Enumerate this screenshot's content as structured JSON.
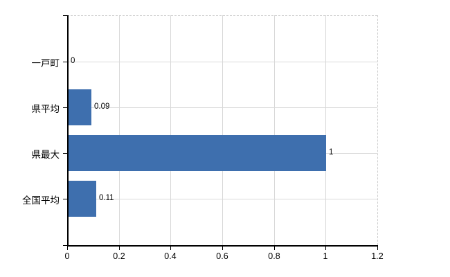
{
  "chart_data": {
    "type": "bar",
    "orientation": "horizontal",
    "title": "",
    "categories": [
      "一戸町",
      "県平均",
      "県最大",
      "全国平均"
    ],
    "values": [
      0,
      0.09,
      1,
      0.11
    ],
    "value_labels": [
      "0",
      "0.09",
      "1",
      "0.11"
    ],
    "xlabel": "",
    "ylabel": "",
    "xlim": [
      0,
      1.2
    ],
    "x_tick_values": [
      0,
      0.2,
      0.4,
      0.6,
      0.8,
      1,
      1.2
    ],
    "x_tick_labels": [
      "0",
      "0.2",
      "0.4",
      "0.6",
      "0.8",
      "1",
      "1.2"
    ],
    "grid": "on",
    "legend": "none",
    "colors": {
      "bar": "#3e6fae",
      "grid_line": "#d9d9d9",
      "dashed_border": "#d0d0d0",
      "axis_line": "#000000",
      "text": "#000000",
      "background": "#ffffff"
    }
  }
}
